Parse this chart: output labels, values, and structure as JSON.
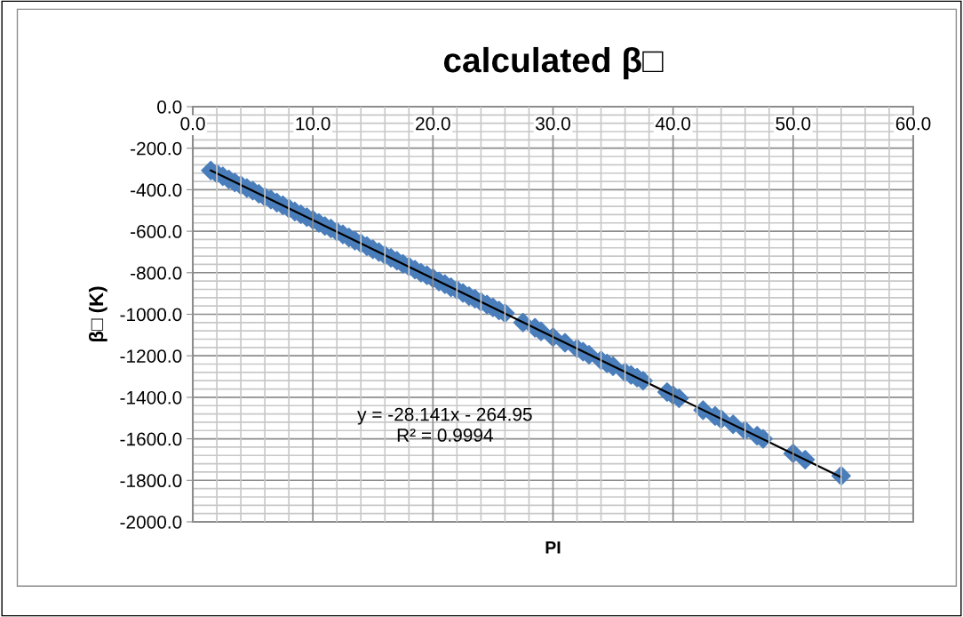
{
  "chart_data": {
    "type": "scatter",
    "title": "calculated β□",
    "xlabel": "PI",
    "ylabel": "β□ (K)",
    "xlim": [
      0,
      60
    ],
    "ylim": [
      -2000,
      0
    ],
    "xticks": [
      {
        "value": 0,
        "label": "0.0"
      },
      {
        "value": 10,
        "label": "10.0"
      },
      {
        "value": 20,
        "label": "20.0"
      },
      {
        "value": 30,
        "label": "30.0"
      },
      {
        "value": 40,
        "label": "40.0"
      },
      {
        "value": 50,
        "label": "50.0"
      },
      {
        "value": 60,
        "label": "60.0"
      }
    ],
    "yticks": [
      {
        "value": 0,
        "label": "0.0"
      },
      {
        "value": -200,
        "label": "-200.0"
      },
      {
        "value": -400,
        "label": "-400.0"
      },
      {
        "value": -600,
        "label": "-600.0"
      },
      {
        "value": -800,
        "label": "-800.0"
      },
      {
        "value": -1000,
        "label": "-1000.0"
      },
      {
        "value": -1200,
        "label": "-1200.0"
      },
      {
        "value": -1400,
        "label": "-1400.0"
      },
      {
        "value": -1600,
        "label": "-1600.0"
      },
      {
        "value": -1800,
        "label": "-1800.0"
      },
      {
        "value": -2000,
        "label": "-2000.0"
      }
    ],
    "grid": true,
    "legend": false,
    "series": [
      {
        "marker": "diamond",
        "color": "#4a7ebb",
        "x": [
          1.5,
          2.0,
          2.5,
          3.0,
          3.5,
          4.0,
          4.5,
          5.0,
          5.5,
          6.0,
          6.5,
          7.0,
          7.5,
          8.0,
          8.5,
          9.0,
          9.5,
          10.0,
          10.5,
          11.0,
          11.5,
          12.0,
          12.5,
          13.0,
          13.5,
          14.0,
          14.5,
          15.0,
          15.5,
          16.0,
          16.5,
          17.0,
          17.5,
          18.0,
          18.5,
          19.0,
          19.5,
          20.0,
          20.5,
          21.0,
          21.5,
          22.0,
          22.5,
          23.0,
          23.5,
          24.0,
          24.5,
          25.0,
          25.5,
          26.0,
          27.5,
          28.5,
          29.0,
          30.0,
          31.0,
          32.0,
          32.5,
          33.0,
          34.0,
          34.5,
          35.0,
          36.0,
          36.5,
          37.0,
          37.5,
          39.5,
          40.0,
          40.5,
          42.5,
          43.5,
          44.0,
          45.0,
          46.0,
          47.0,
          47.5,
          50.0,
          51.0,
          54.0
        ],
        "values": [
          -307,
          -322,
          -335,
          -350,
          -365,
          -378,
          -392,
          -405,
          -420,
          -435,
          -447,
          -462,
          -475,
          -490,
          -505,
          -518,
          -532,
          -545,
          -560,
          -575,
          -587,
          -602,
          -615,
          -630,
          -645,
          -658,
          -672,
          -687,
          -700,
          -715,
          -728,
          -742,
          -757,
          -770,
          -785,
          -800,
          -812,
          -826,
          -842,
          -855,
          -870,
          -882,
          -897,
          -912,
          -925,
          -940,
          -953,
          -967,
          -982,
          -995,
          -1040,
          -1065,
          -1082,
          -1110,
          -1137,
          -1165,
          -1180,
          -1195,
          -1222,
          -1237,
          -1250,
          -1280,
          -1292,
          -1305,
          -1320,
          -1375,
          -1390,
          -1405,
          -1462,
          -1490,
          -1505,
          -1530,
          -1560,
          -1585,
          -1600,
          -1670,
          -1700,
          -1778
        ]
      },
      {
        "type": "line",
        "color": "#000000",
        "x": [
          1.5,
          54
        ],
        "values": [
          -307,
          -1785
        ]
      }
    ],
    "annotations": [
      "y = -28.141x - 264.95",
      "R² = 0.9994"
    ]
  }
}
